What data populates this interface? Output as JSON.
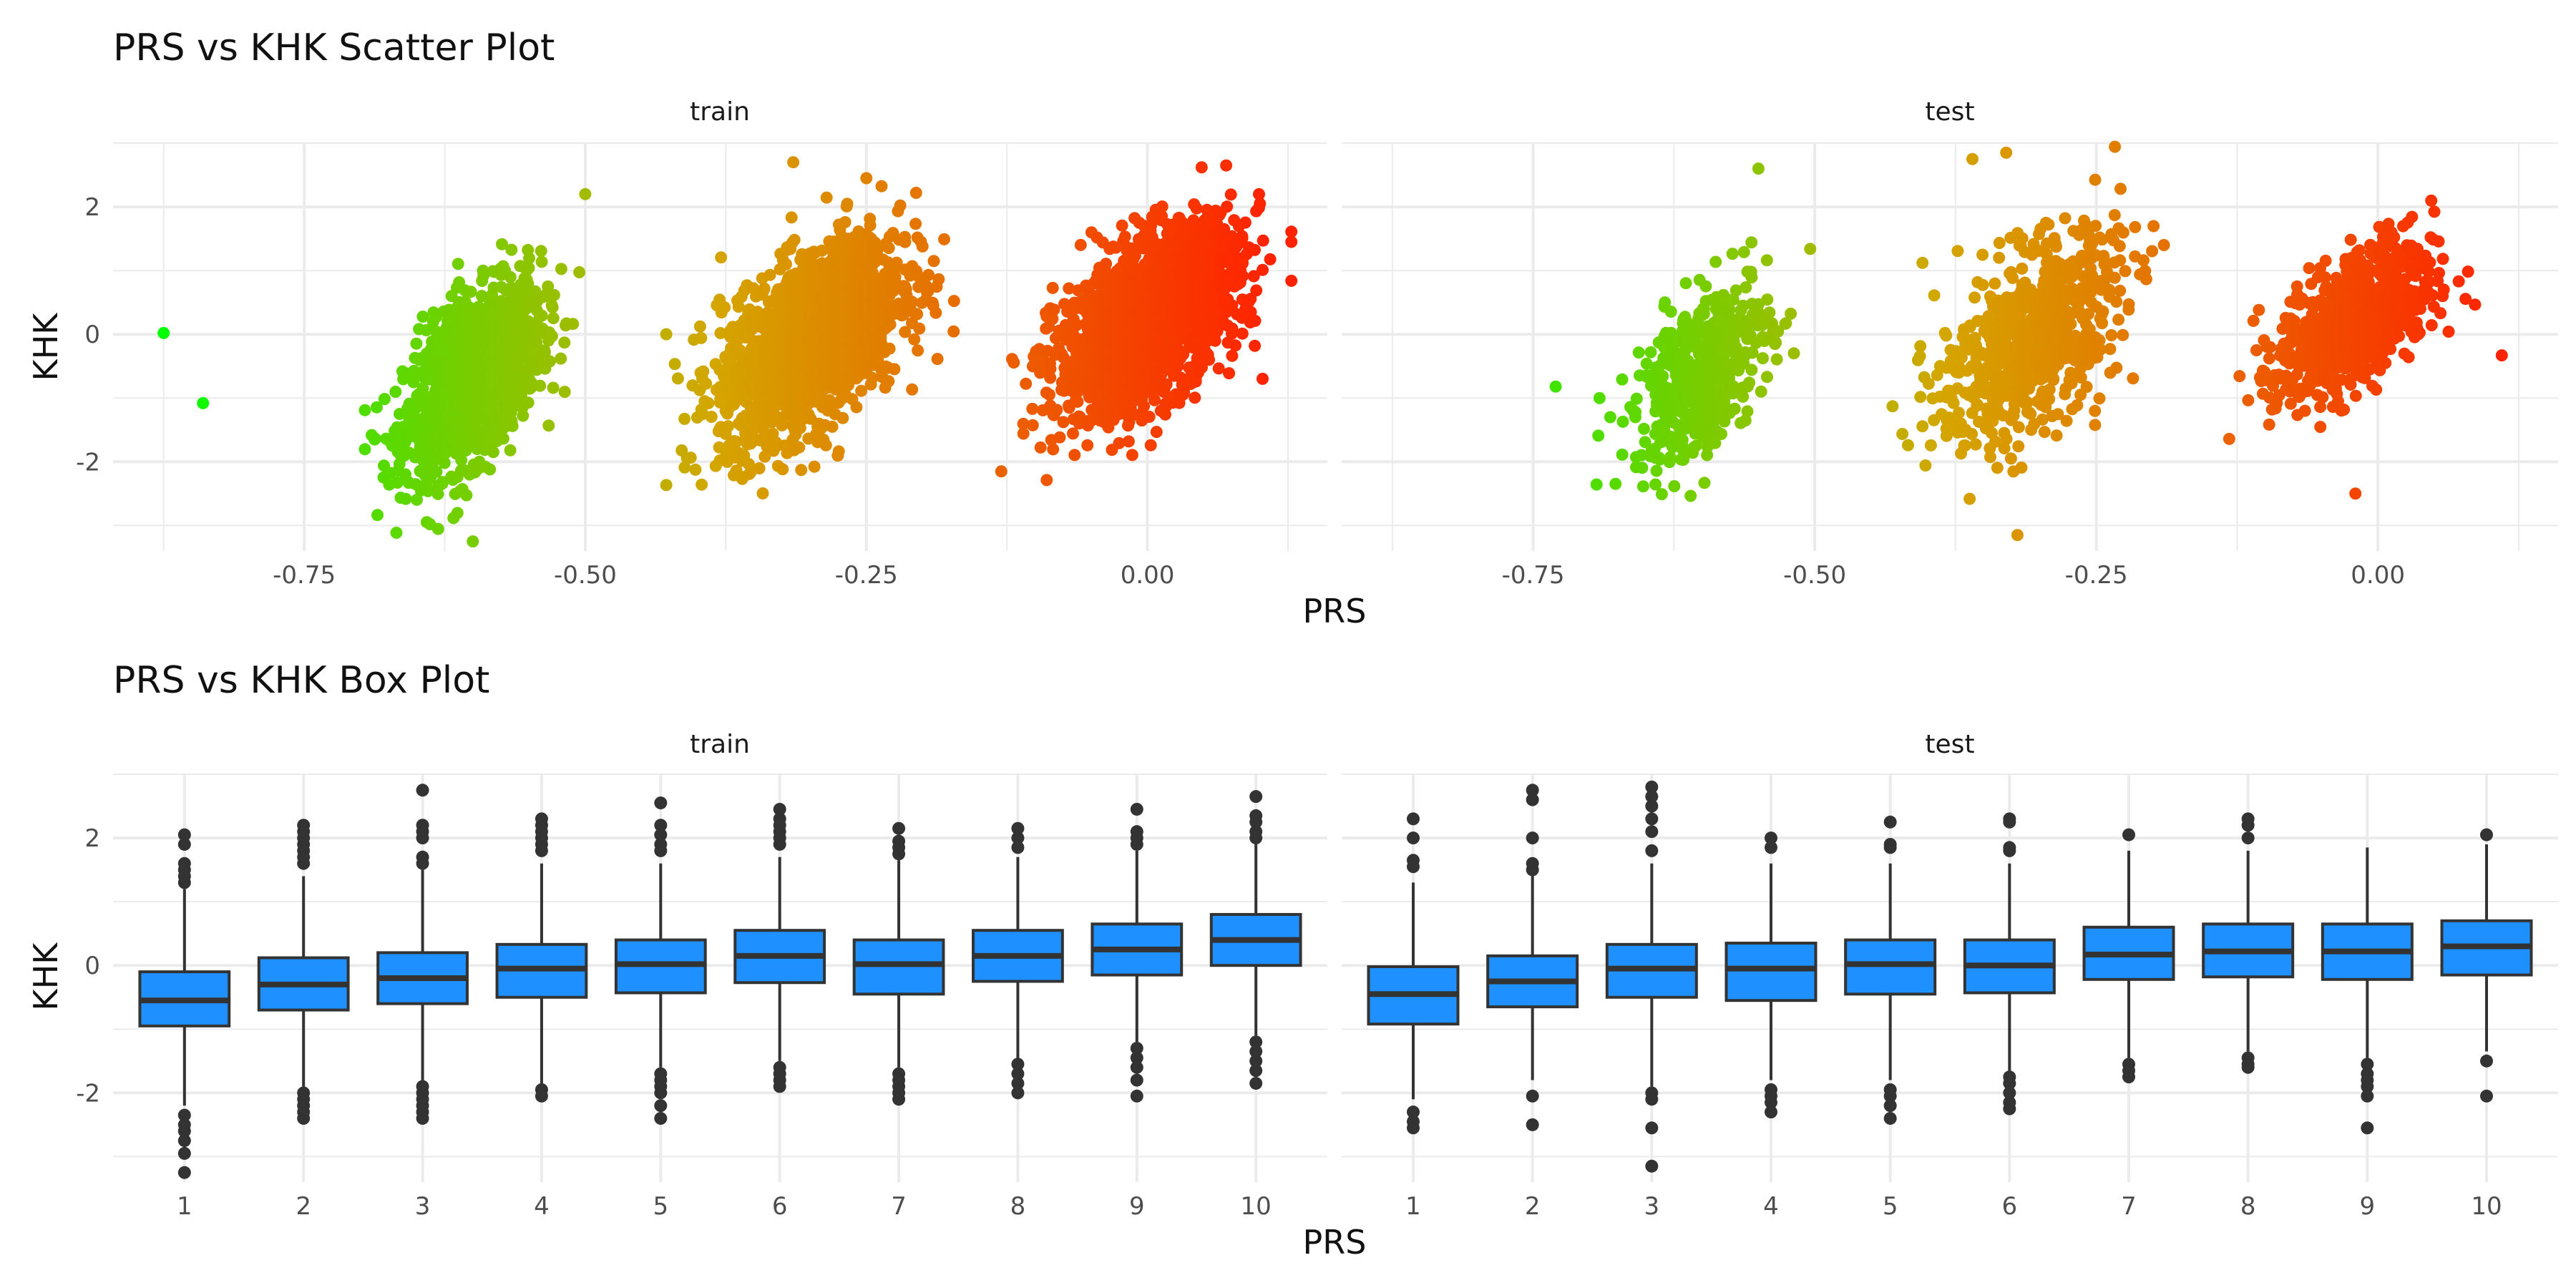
{
  "colors": {
    "scatter_low": "#00ff00",
    "scatter_mid": "#d4a600",
    "scatter_high": "#ff2200",
    "box_fill": "#1e90ff",
    "box_line": "#333333",
    "grid": "#ebebeb"
  },
  "chart_data": [
    {
      "type": "scatter",
      "title": "PRS vs KHK Scatter Plot",
      "xlabel": "PRS",
      "ylabel": "KHK",
      "x_ticks": [
        -0.75,
        -0.5,
        -0.25,
        0.0
      ],
      "x_tick_labels": [
        "-0.75",
        "-0.50",
        "-0.25",
        "0.00"
      ],
      "y_ticks": [
        -2,
        0,
        2
      ],
      "y_tick_labels": [
        "-2",
        "0",
        "2"
      ],
      "xlim": [
        -0.92,
        0.16
      ],
      "ylim": [
        -3.4,
        3.0
      ],
      "color_scale": "gradient by PRS: green (low) to red (high)",
      "grid": true,
      "facets": [
        {
          "name": "train",
          "clusters": [
            {
              "x_center": -0.6,
              "x_sd": 0.03,
              "y_center": -0.7,
              "y_sd": 0.75,
              "n": 1400
            },
            {
              "x_center": -0.3,
              "x_sd": 0.04,
              "y_center": -0.1,
              "y_sd": 0.8,
              "n": 1800
            },
            {
              "x_center": 0.0,
              "x_sd": 0.04,
              "y_center": 0.2,
              "y_sd": 0.75,
              "n": 1800
            }
          ],
          "outliers": [
            {
              "x": -0.875,
              "y": 0.02
            },
            {
              "x": -0.84,
              "y": -1.08
            },
            {
              "x": -0.6,
              "y": -3.25
            },
            {
              "x": -0.5,
              "y": 2.2
            },
            {
              "x": -0.315,
              "y": 2.7
            },
            {
              "x": -0.25,
              "y": 2.45
            },
            {
              "x": 0.07,
              "y": 2.65
            },
            {
              "x": 0.1,
              "y": 2.05
            },
            {
              "x": -0.19,
              "y": 1.15
            },
            {
              "x": -0.13,
              "y": -2.15
            }
          ]
        },
        {
          "name": "test",
          "clusters": [
            {
              "x_center": -0.6,
              "x_sd": 0.03,
              "y_center": -0.6,
              "y_sd": 0.75,
              "n": 500
            },
            {
              "x_center": -0.31,
              "x_sd": 0.04,
              "y_center": -0.1,
              "y_sd": 0.85,
              "n": 700
            },
            {
              "x_center": -0.02,
              "x_sd": 0.035,
              "y_center": 0.2,
              "y_sd": 0.65,
              "n": 700
            }
          ],
          "outliers": [
            {
              "x": 0.11,
              "y": -0.33
            },
            {
              "x": -0.32,
              "y": -3.15
            },
            {
              "x": -0.33,
              "y": 2.85
            },
            {
              "x": -0.36,
              "y": 2.75
            },
            {
              "x": -0.55,
              "y": 2.6
            },
            {
              "x": -0.73,
              "y": -0.82
            },
            {
              "x": -0.02,
              "y": -2.5
            },
            {
              "x": -0.19,
              "y": 1.4
            }
          ]
        }
      ]
    },
    {
      "type": "box",
      "title": "PRS vs KHK Box Plot",
      "xlabel": "PRS",
      "ylabel": "KHK",
      "categories": [
        "1",
        "2",
        "3",
        "4",
        "5",
        "6",
        "7",
        "8",
        "9",
        "10"
      ],
      "y_ticks": [
        -2,
        0,
        2
      ],
      "y_tick_labels": [
        "-2",
        "0",
        "2"
      ],
      "ylim": [
        -3.4,
        3.0
      ],
      "grid": true,
      "facets": [
        {
          "name": "train",
          "boxes": [
            {
              "q1": -0.95,
              "median": -0.55,
              "q3": -0.1,
              "lower": -2.2,
              "upper": 1.2,
              "outliers": [
                2.05,
                1.9,
                1.6,
                1.5,
                1.4,
                1.3,
                -2.35,
                -2.5,
                -2.6,
                -2.75,
                -2.95,
                -3.25
              ]
            },
            {
              "q1": -0.7,
              "median": -0.3,
              "q3": 0.12,
              "lower": -1.9,
              "upper": 1.4,
              "outliers": [
                2.2,
                2.1,
                2.0,
                1.9,
                1.8,
                1.7,
                1.6,
                -2.0,
                -2.1,
                -2.2,
                -2.3,
                -2.4
              ]
            },
            {
              "q1": -0.6,
              "median": -0.2,
              "q3": 0.2,
              "lower": -1.8,
              "upper": 1.5,
              "outliers": [
                2.75,
                2.2,
                2.1,
                2.0,
                1.7,
                1.6,
                -1.9,
                -2.0,
                -2.1,
                -2.2,
                -2.3,
                -2.4
              ]
            },
            {
              "q1": -0.5,
              "median": -0.05,
              "q3": 0.33,
              "lower": -1.85,
              "upper": 1.6,
              "outliers": [
                2.3,
                2.2,
                2.1,
                2.0,
                1.9,
                1.8,
                -1.95,
                -2.05
              ]
            },
            {
              "q1": -0.43,
              "median": 0.02,
              "q3": 0.4,
              "lower": -1.6,
              "upper": 1.6,
              "outliers": [
                2.55,
                2.2,
                2.05,
                1.9,
                1.8,
                -1.7,
                -1.8,
                -1.9,
                -2.0,
                -2.2,
                -2.4
              ]
            },
            {
              "q1": -0.27,
              "median": 0.15,
              "q3": 0.55,
              "lower": -1.5,
              "upper": 1.7,
              "outliers": [
                2.45,
                2.3,
                2.2,
                2.1,
                2.0,
                1.9,
                -1.6,
                -1.7,
                -1.8,
                -1.9
              ]
            },
            {
              "q1": -0.45,
              "median": 0.02,
              "q3": 0.4,
              "lower": -1.6,
              "upper": 1.65,
              "outliers": [
                2.15,
                1.95,
                1.85,
                1.75,
                -1.7,
                -1.8,
                -1.9,
                -2.0,
                -2.1
              ]
            },
            {
              "q1": -0.25,
              "median": 0.15,
              "q3": 0.55,
              "lower": -1.5,
              "upper": 1.7,
              "outliers": [
                2.15,
                2.0,
                1.85,
                -1.55,
                -1.7,
                -1.85,
                -2.0
              ]
            },
            {
              "q1": -0.15,
              "median": 0.25,
              "q3": 0.65,
              "lower": -1.25,
              "upper": 1.8,
              "outliers": [
                2.45,
                2.1,
                2.0,
                1.9,
                -1.3,
                -1.45,
                -1.6,
                -1.8,
                -2.05
              ]
            },
            {
              "q1": 0.0,
              "median": 0.4,
              "q3": 0.8,
              "lower": -1.1,
              "upper": 1.9,
              "outliers": [
                2.65,
                2.35,
                2.25,
                2.1,
                2.0,
                -1.2,
                -1.35,
                -1.5,
                -1.65,
                -1.85
              ]
            }
          ]
        },
        {
          "name": "test",
          "boxes": [
            {
              "q1": -0.92,
              "median": -0.45,
              "q3": -0.02,
              "lower": -2.1,
              "upper": 1.3,
              "outliers": [
                2.3,
                2.0,
                1.65,
                1.55,
                -2.3,
                -2.45,
                -2.55
              ]
            },
            {
              "q1": -0.65,
              "median": -0.25,
              "q3": 0.15,
              "lower": -1.8,
              "upper": 1.4,
              "outliers": [
                2.75,
                2.6,
                2.0,
                1.6,
                1.5,
                -2.05,
                -2.5
              ]
            },
            {
              "q1": -0.5,
              "median": -0.05,
              "q3": 0.33,
              "lower": -1.9,
              "upper": 1.6,
              "outliers": [
                2.8,
                2.65,
                2.5,
                2.3,
                2.1,
                1.8,
                -2.0,
                -2.1,
                -2.55,
                -3.15
              ]
            },
            {
              "q1": -0.55,
              "median": -0.05,
              "q3": 0.35,
              "lower": -1.8,
              "upper": 1.6,
              "outliers": [
                2.0,
                1.85,
                -1.95,
                -2.05,
                -2.15,
                -2.3
              ]
            },
            {
              "q1": -0.45,
              "median": 0.02,
              "q3": 0.4,
              "lower": -1.8,
              "upper": 1.6,
              "outliers": [
                2.25,
                1.9,
                1.85,
                -1.95,
                -2.05,
                -2.2,
                -2.4
              ]
            },
            {
              "q1": -0.43,
              "median": 0.0,
              "q3": 0.4,
              "lower": -1.65,
              "upper": 1.6,
              "outliers": [
                2.3,
                2.25,
                1.85,
                1.8,
                -1.75,
                -1.85,
                -2.0,
                -2.15,
                -2.25
              ]
            },
            {
              "q1": -0.22,
              "median": 0.17,
              "q3": 0.6,
              "lower": -1.45,
              "upper": 1.8,
              "outliers": [
                2.05,
                -1.55,
                -1.65,
                -1.75
              ]
            },
            {
              "q1": -0.18,
              "median": 0.22,
              "q3": 0.65,
              "lower": -1.35,
              "upper": 1.8,
              "outliers": [
                2.3,
                2.2,
                2.0,
                -1.45,
                -1.55,
                -1.6
              ]
            },
            {
              "q1": -0.22,
              "median": 0.22,
              "q3": 0.65,
              "lower": -1.45,
              "upper": 1.85,
              "outliers": [
                -1.55,
                -1.7,
                -1.8,
                -1.9,
                -2.05,
                -2.55
              ]
            },
            {
              "q1": -0.15,
              "median": 0.3,
              "q3": 0.7,
              "lower": -1.35,
              "upper": 1.9,
              "outliers": [
                2.05,
                -1.5,
                -2.05
              ]
            }
          ]
        }
      ]
    }
  ]
}
